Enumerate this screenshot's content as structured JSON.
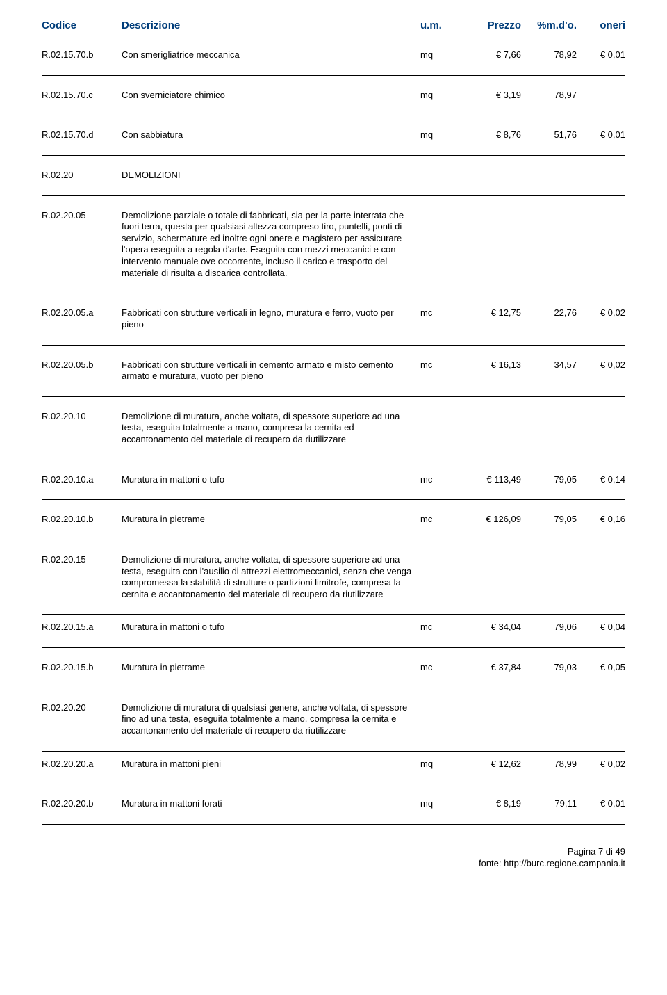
{
  "header": {
    "code": "Codice",
    "desc": "Descrizione",
    "um": "u.m.",
    "price": "Prezzo",
    "pct": "%m.d'o.",
    "oner": "oneri"
  },
  "rows": [
    {
      "code": "R.02.15.70.b",
      "desc": "Con smerigliatrice meccanica",
      "um": "mq",
      "price": "€ 7,66",
      "pct": "78,92",
      "oner": "€ 0,01"
    },
    {
      "code": "R.02.15.70.c",
      "desc": "Con sverniciatore chimico",
      "um": "mq",
      "price": "€ 3,19",
      "pct": "78,97",
      "oner": ""
    },
    {
      "code": "R.02.15.70.d",
      "desc": "Con sabbiatura",
      "um": "mq",
      "price": "€ 8,76",
      "pct": "51,76",
      "oner": "€ 0,01"
    },
    {
      "code": "R.02.20",
      "desc": "DEMOLIZIONI",
      "um": "",
      "price": "",
      "pct": "",
      "oner": ""
    },
    {
      "code": "R.02.20.05",
      "desc": "Demolizione parziale o totale di fabbricati, sia per la parte interrata che fuori terra, questa per qualsiasi altezza compreso tiro, puntelli, ponti di servizio, schermature ed inoltre ogni onere e magistero per assicurare l'opera eseguita a regola d'arte. Eseguita con mezzi meccanici e con intervento manuale ove occorrente, incluso il carico e trasporto del materiale di risulta a discarica controllata.",
      "um": "",
      "price": "",
      "pct": "",
      "oner": ""
    },
    {
      "code": "R.02.20.05.a",
      "desc": "Fabbricati con strutture verticali in legno, muratura e ferro, vuoto per pieno",
      "um": "mc",
      "price": "€ 12,75",
      "pct": "22,76",
      "oner": "€ 0,02"
    },
    {
      "code": "R.02.20.05.b",
      "desc": "Fabbricati con strutture verticali in cemento armato e misto cemento armato e muratura, vuoto per pieno",
      "um": "mc",
      "price": "€ 16,13",
      "pct": "34,57",
      "oner": "€ 0,02"
    },
    {
      "code": "R.02.20.10",
      "desc": "Demolizione di muratura, anche voltata, di spessore superiore ad una testa, eseguita totalmente a mano, compresa la cernita ed accantonamento del materiale di recupero da riutilizzare",
      "um": "",
      "price": "",
      "pct": "",
      "oner": ""
    },
    {
      "code": "R.02.20.10.a",
      "desc": "Muratura in mattoni o tufo",
      "um": "mc",
      "price": "€ 113,49",
      "pct": "79,05",
      "oner": "€ 0,14"
    },
    {
      "code": "R.02.20.10.b",
      "desc": "Muratura in pietrame",
      "um": "mc",
      "price": "€ 126,09",
      "pct": "79,05",
      "oner": "€ 0,16"
    },
    {
      "code": "R.02.20.15",
      "desc": "Demolizione di muratura, anche voltata, di spessore superiore ad una testa, eseguita con l'ausilio di attrezzi elettromeccanici, senza che venga compromessa la stabilità di strutture o partizioni limitrofe, compresa la cernita e accantonamento del materiale di recupero da riutilizzare",
      "um": "",
      "price": "",
      "pct": "",
      "oner": ""
    },
    {
      "code": "R.02.20.15.a",
      "desc": "Muratura in mattoni o tufo",
      "um": "mc",
      "price": "€ 34,04",
      "pct": "79,06",
      "oner": "€ 0,04",
      "short": true
    },
    {
      "code": "R.02.20.15.b",
      "desc": "Muratura in pietrame",
      "um": "mc",
      "price": "€ 37,84",
      "pct": "79,03",
      "oner": "€ 0,05"
    },
    {
      "code": "R.02.20.20",
      "desc": "Demolizione di muratura di qualsiasi genere, anche voltata, di spessore fino ad una testa, eseguita totalmente a mano, compresa la cernita e accantonamento del materiale di recupero da riutilizzare",
      "um": "",
      "price": "",
      "pct": "",
      "oner": ""
    },
    {
      "code": "R.02.20.20.a",
      "desc": "Muratura in mattoni pieni",
      "um": "mq",
      "price": "€ 12,62",
      "pct": "78,99",
      "oner": "€ 0,02",
      "short": true
    },
    {
      "code": "R.02.20.20.b",
      "desc": "Muratura in mattoni forati",
      "um": "mq",
      "price": "€ 8,19",
      "pct": "79,11",
      "oner": "€ 0,01"
    }
  ],
  "footer": {
    "page": "Pagina 7 di 49",
    "source": "fonte: http://burc.regione.campania.it"
  }
}
